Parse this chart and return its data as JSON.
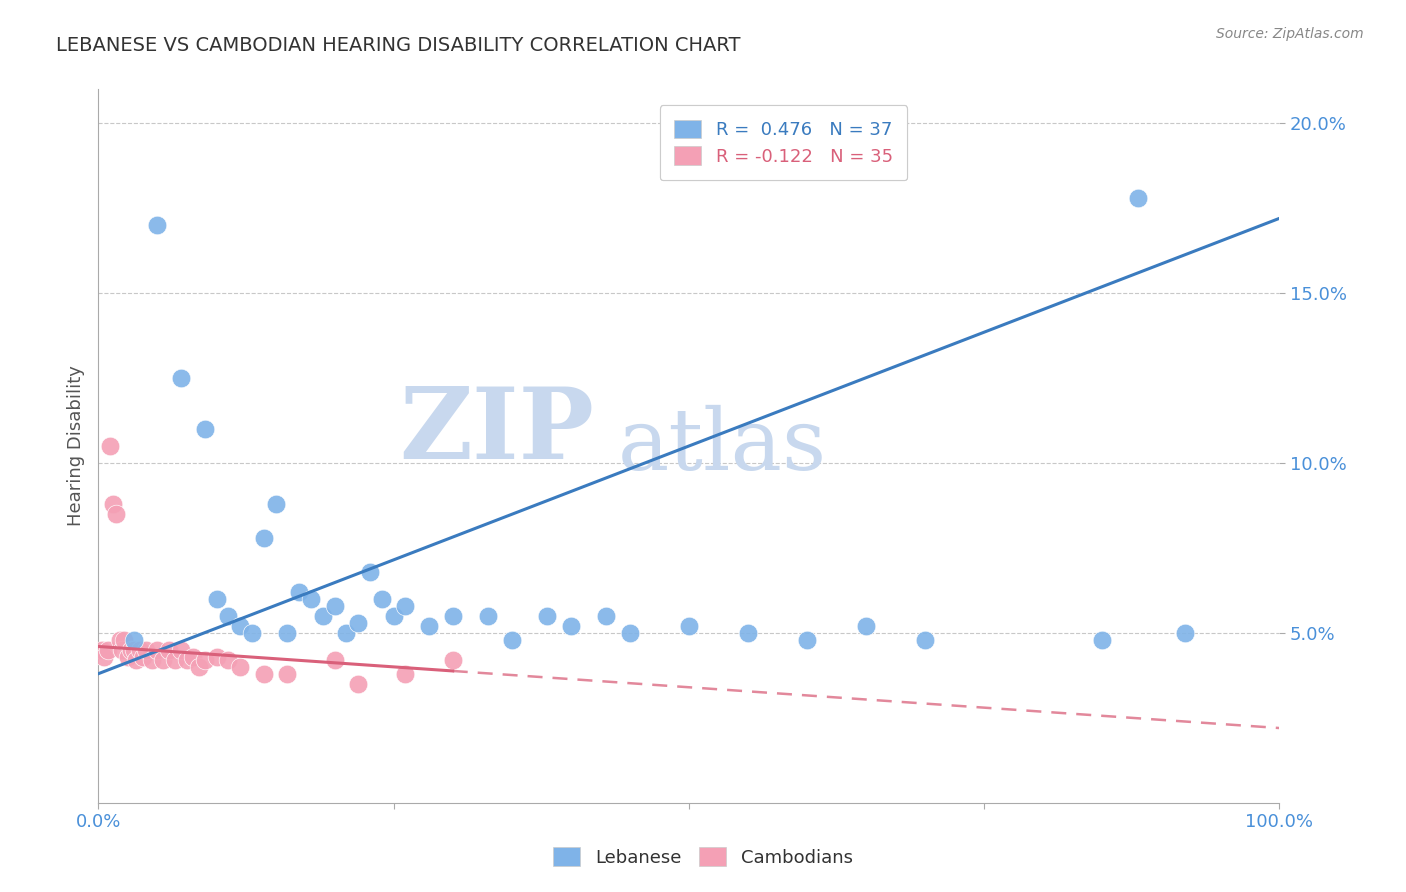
{
  "title": "LEBANESE VS CAMBODIAN HEARING DISABILITY CORRELATION CHART",
  "source": "Source: ZipAtlas.com",
  "ylabel": "Hearing Disability",
  "xlim": [
    0,
    100
  ],
  "ylim": [
    0,
    21
  ],
  "lebanese_R": 0.476,
  "lebanese_N": 37,
  "cambodian_R": -0.122,
  "cambodian_N": 35,
  "lebanese_color": "#7fb3e8",
  "cambodian_color": "#f4a0b5",
  "lebanese_line_color": "#3a7bbf",
  "cambodian_line_color": "#d9607a",
  "watermark_zip_color": "#c8d8ee",
  "watermark_atlas_color": "#c8d8ee",
  "leb_line_x0": 0,
  "leb_line_y0": 3.8,
  "leb_line_x1": 100,
  "leb_line_y1": 17.2,
  "cam_line_x0": 0,
  "cam_line_y0": 4.6,
  "cam_line_x1": 100,
  "cam_line_y1": 2.2,
  "cam_solid_end": 30,
  "lebanese_x": [
    3,
    5,
    7,
    9,
    10,
    11,
    12,
    13,
    14,
    15,
    16,
    17,
    18,
    19,
    20,
    21,
    22,
    23,
    24,
    25,
    26,
    28,
    30,
    33,
    35,
    38,
    40,
    43,
    45,
    50,
    55,
    60,
    65,
    70,
    85,
    88,
    92
  ],
  "lebanese_y": [
    4.8,
    17.0,
    12.5,
    11.0,
    6.0,
    5.5,
    5.2,
    5.0,
    7.8,
    8.8,
    5.0,
    6.2,
    6.0,
    5.5,
    5.8,
    5.0,
    5.3,
    6.8,
    6.0,
    5.5,
    5.8,
    5.2,
    5.5,
    5.5,
    4.8,
    5.5,
    5.2,
    5.5,
    5.0,
    5.2,
    5.0,
    4.8,
    5.2,
    4.8,
    4.8,
    17.8,
    5.0
  ],
  "cambodian_x": [
    0.3,
    0.5,
    0.8,
    1.0,
    1.2,
    1.5,
    1.8,
    2.0,
    2.2,
    2.5,
    2.8,
    3.0,
    3.2,
    3.5,
    3.8,
    4.0,
    4.5,
    5.0,
    5.5,
    6.0,
    6.5,
    7.0,
    7.5,
    8.0,
    8.5,
    9.0,
    10.0,
    11.0,
    12.0,
    14.0,
    16.0,
    20.0,
    22.0,
    26.0,
    30.0
  ],
  "cambodian_y": [
    4.5,
    4.3,
    4.5,
    10.5,
    8.8,
    8.5,
    4.8,
    4.5,
    4.8,
    4.3,
    4.5,
    4.5,
    4.2,
    4.5,
    4.3,
    4.5,
    4.2,
    4.5,
    4.2,
    4.5,
    4.2,
    4.5,
    4.2,
    4.3,
    4.0,
    4.2,
    4.3,
    4.2,
    4.0,
    3.8,
    3.8,
    4.2,
    3.5,
    3.8,
    4.2
  ]
}
